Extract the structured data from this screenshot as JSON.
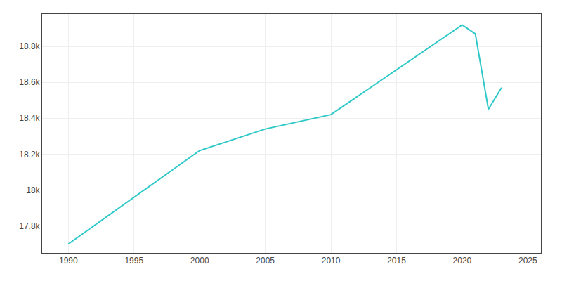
{
  "chart_data": {
    "type": "line",
    "x": [
      1990,
      2000,
      2005,
      2010,
      2020,
      2021,
      2022,
      2023
    ],
    "values": [
      17700,
      18220,
      18340,
      18420,
      18920,
      18870,
      18450,
      18570
    ],
    "color": "#2ec8c8",
    "xlim": [
      1988,
      2026
    ],
    "ylim": [
      17650,
      18980
    ],
    "xticks": [
      1990,
      1995,
      2000,
      2005,
      2010,
      2015,
      2020,
      2025
    ],
    "yticks": [
      {
        "value": 17800,
        "label": "17.8k"
      },
      {
        "value": 18000,
        "label": "18k"
      },
      {
        "value": 18200,
        "label": "18.2k"
      },
      {
        "value": 18400,
        "label": "18.4k"
      },
      {
        "value": 18600,
        "label": "18.6k"
      },
      {
        "value": 18800,
        "label": "18.8k"
      }
    ],
    "grid": true
  }
}
